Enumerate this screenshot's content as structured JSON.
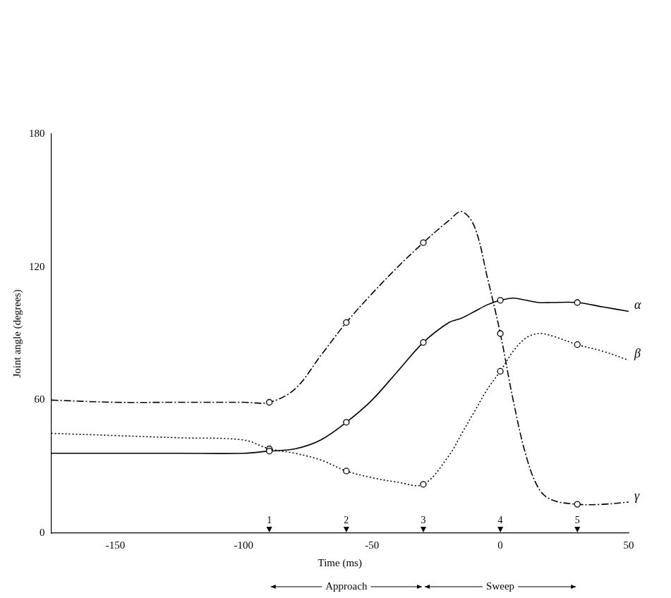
{
  "chart_data": {
    "type": "line",
    "x_label": "Time (ms)",
    "y_label": "Joint angle (degrees)",
    "x": [
      -175,
      -150,
      -125,
      -100,
      -90,
      -80,
      -70,
      -60,
      -50,
      -40,
      -30,
      -20,
      -15,
      -10,
      -5,
      0,
      5,
      10,
      15,
      20,
      30,
      40,
      50
    ],
    "series": [
      {
        "name": "α",
        "color": "#000000",
        "line_style": "solid",
        "marker": "circle",
        "values": [
          36,
          36,
          36,
          36,
          37,
          38,
          42,
          50,
          60,
          73,
          86,
          95,
          97,
          100,
          103,
          105,
          106,
          105,
          104,
          104,
          104,
          102,
          100
        ]
      },
      {
        "name": "β",
        "color": "#000000",
        "line_style": "dotted",
        "marker": "circle",
        "values": [
          45,
          44,
          43,
          42,
          38,
          36,
          33,
          28,
          25,
          23,
          22,
          35,
          45,
          55,
          65,
          73,
          82,
          88,
          90,
          89,
          85,
          82,
          78
        ]
      },
      {
        "name": "γ",
        "color": "#000000",
        "line_style": "dashdot",
        "marker": "circle",
        "values": [
          60,
          59,
          59,
          59,
          59,
          65,
          80,
          95,
          108,
          120,
          131,
          141,
          145,
          138,
          115,
          90,
          60,
          35,
          20,
          15,
          13,
          13,
          14
        ]
      }
    ],
    "events": [
      {
        "value": -90,
        "label": "1"
      },
      {
        "value": -60,
        "label": "2"
      },
      {
        "value": -30,
        "label": "3"
      },
      {
        "value": 0,
        "label": "4"
      },
      {
        "value": 30,
        "label": "5"
      }
    ],
    "annotations": [
      {
        "text": "Approach",
        "from": -90,
        "to": -30
      },
      {
        "text": "Sweep",
        "from": -30,
        "to": 30
      }
    ],
    "xlim": [
      -175,
      50
    ],
    "xticks": [
      -150,
      -100,
      -50,
      0,
      50
    ],
    "ylim": [
      0,
      180
    ],
    "yticks": [
      0,
      60,
      120,
      180
    ],
    "grid": false
  }
}
